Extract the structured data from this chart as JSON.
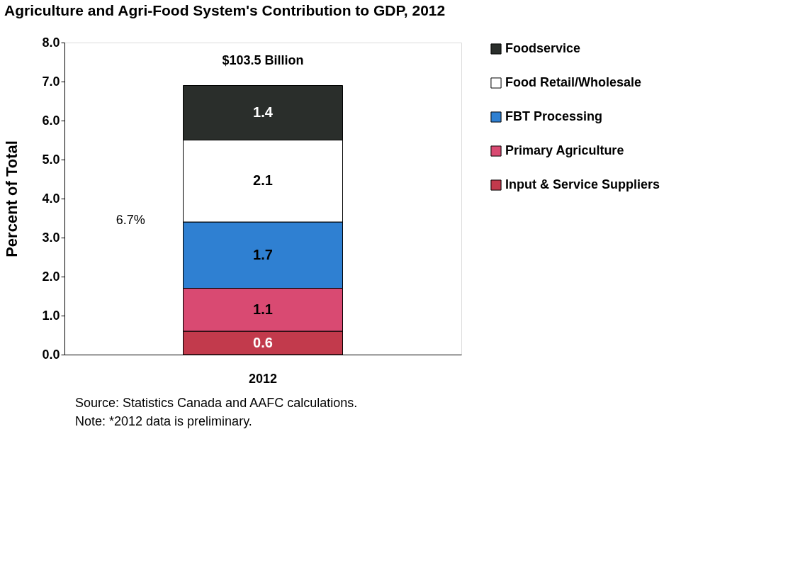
{
  "chart_data": {
    "type": "bar",
    "title": "Agriculture and Agri-Food System's Contribution to GDP, 2012",
    "ylabel": "Percent of Total",
    "categories": [
      "2012"
    ],
    "stacked": true,
    "data_labels": true,
    "grid": false,
    "legend": "right",
    "ylim": [
      0,
      8
    ],
    "yticks": [
      {
        "value": 0,
        "label": "0.0"
      },
      {
        "value": 1,
        "label": "1.0"
      },
      {
        "value": 2,
        "label": "2.0"
      },
      {
        "value": 3,
        "label": "3.0"
      },
      {
        "value": 4,
        "label": "4.0"
      },
      {
        "value": 5,
        "label": "5.0"
      },
      {
        "value": 6,
        "label": "6.0"
      },
      {
        "value": 7,
        "label": "7.0"
      },
      {
        "value": 8,
        "label": "8.0"
      }
    ],
    "series": [
      {
        "name": "Input & Service Suppliers",
        "color": "#c23a4c",
        "values": [
          0.6
        ]
      },
      {
        "name": "Primary Agriculture",
        "color": "#d94a72",
        "values": [
          1.1
        ]
      },
      {
        "name": "FBT Processing",
        "color": "#2f80d2",
        "values": [
          1.7
        ]
      },
      {
        "name": "Food Retail/Wholesale",
        "color": "#ffffff",
        "values": [
          2.1
        ]
      },
      {
        "name": "Foodservice",
        "color": "#2a2e2b",
        "values": [
          1.4
        ]
      }
    ],
    "annotations": [
      "$103.5 Billion",
      "6.7%",
      "Source: Statistics Canada and AAFC calculations.",
      "Note: *2012 data is preliminary."
    ]
  }
}
